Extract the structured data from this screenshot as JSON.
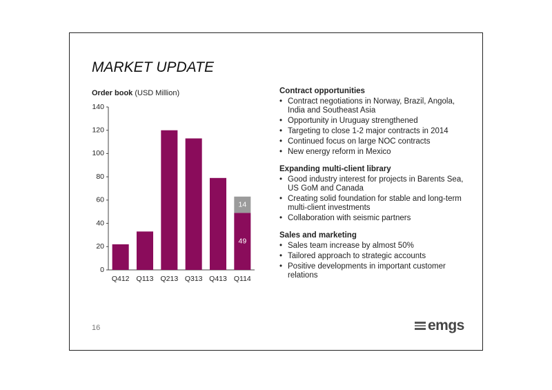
{
  "header": {
    "title": "MARKET UPDATE"
  },
  "chart_data": {
    "type": "stacked-bar",
    "title": "Order book",
    "subtitle": "(USD Million)",
    "categories": [
      "Q412",
      "Q113",
      "Q213",
      "Q313",
      "Q413",
      "Q114"
    ],
    "series": [
      {
        "color": "#8a0c5b",
        "values": [
          22,
          33,
          120,
          113,
          79,
          49
        ]
      },
      {
        "color": "#9b9b9b",
        "values": [
          null,
          null,
          null,
          null,
          null,
          14
        ]
      }
    ],
    "ylim": [
      0,
      140
    ],
    "yticks": [
      0,
      20,
      40,
      60,
      80,
      100,
      120,
      140
    ],
    "grid": false
  },
  "sections": [
    {
      "heading": "Contract opportunities",
      "bullets": [
        "Contract negotiations in Norway, Brazil, Angola, India and Southeast Asia",
        "Opportunity in Uruguay strengthened",
        "Targeting to close 1-2 major contracts in 2014",
        "Continued focus on large NOC contracts",
        "New energy reform in Mexico"
      ]
    },
    {
      "heading": "Expanding multi-client library",
      "bullets": [
        "Good industry interest for projects in Barents Sea, US GoM and Canada",
        "Creating solid foundation for stable and long-term multi-client investments",
        "Collaboration with seismic partners"
      ]
    },
    {
      "heading": "Sales and marketing",
      "bullets": [
        "Sales team increase by almost 50%",
        "Tailored approach to strategic accounts",
        "Positive developments in important customer relations"
      ]
    }
  ],
  "footer": {
    "page": "16",
    "logo": "emgs"
  }
}
